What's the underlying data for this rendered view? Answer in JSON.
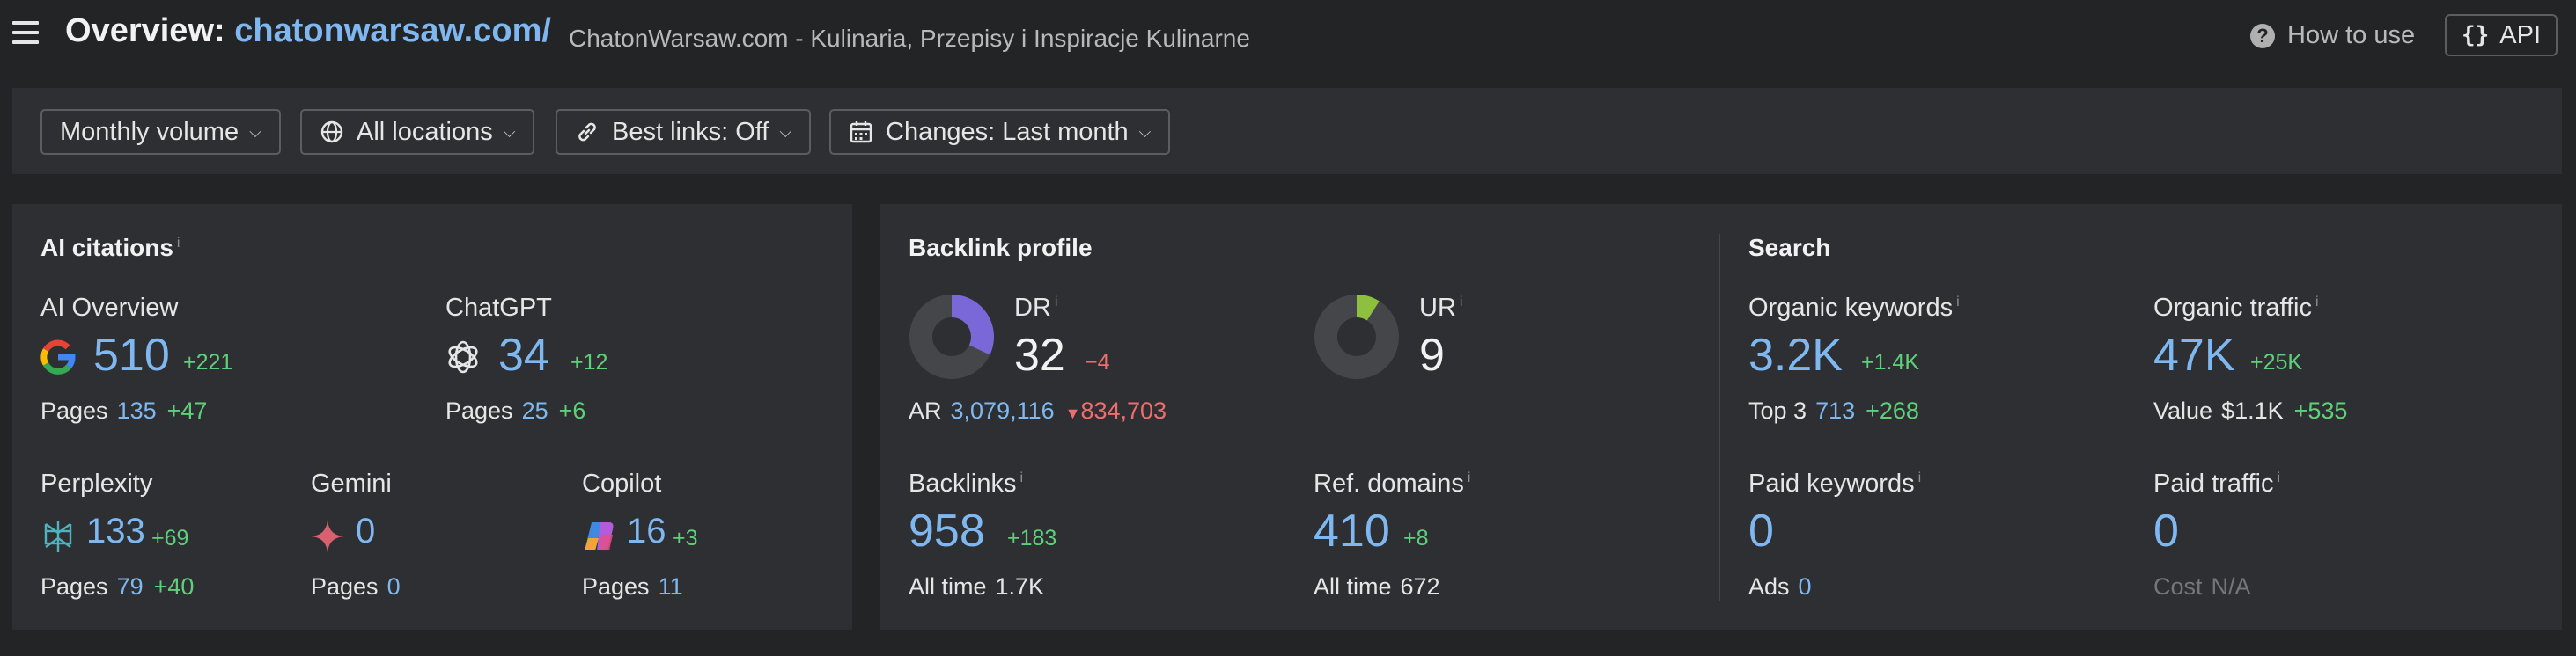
{
  "header": {
    "title_prefix": "Overview:",
    "domain": "chatonwarsaw.com/",
    "subtitle": "ChatonWarsaw.com - Kulinaria, Przepisy i Inspiracje Kulinarne",
    "how_to_use": "How to use",
    "api_brace": "{}",
    "api_label": "API"
  },
  "filters": [
    {
      "label": "Monthly volume",
      "icon": "none"
    },
    {
      "label": "All locations",
      "icon": "globe-icon"
    },
    {
      "label": "Best links: Off",
      "icon": "link-icon"
    },
    {
      "label": "Changes: Last month",
      "icon": "calendar-icon"
    }
  ],
  "ai_citations": {
    "title": "AI citations",
    "info": "i",
    "ai_overview": {
      "label": "AI Overview",
      "value": "510",
      "delta": "+221",
      "pages_label": "Pages",
      "pages": "135",
      "pages_delta": "+47",
      "icon": "google-icon"
    },
    "chatgpt": {
      "label": "ChatGPT",
      "value": "34",
      "delta": "+12",
      "pages_label": "Pages",
      "pages": "25",
      "pages_delta": "+6",
      "icon": "openai-icon"
    },
    "perplexity": {
      "label": "Perplexity",
      "value": "133",
      "delta": "+69",
      "pages_label": "Pages",
      "pages": "79",
      "pages_delta": "+40",
      "icon": "perplexity-icon"
    },
    "gemini": {
      "label": "Gemini",
      "value": "0",
      "pages_label": "Pages",
      "pages": "0",
      "icon": "gemini-icon"
    },
    "copilot": {
      "label": "Copilot",
      "value": "16",
      "delta": "+3",
      "pages_label": "Pages",
      "pages": "11",
      "icon": "copilot-icon"
    }
  },
  "backlink_profile": {
    "title": "Backlink profile",
    "dr": {
      "label": "DR",
      "info": "i",
      "value": "32",
      "delta": "−4",
      "fill_fraction": 0.32,
      "color": "#7b68d8"
    },
    "ar": {
      "label": "AR",
      "value": "3,079,116",
      "delta": "834,703"
    },
    "ur": {
      "label": "UR",
      "info": "i",
      "value": "9",
      "fill_fraction": 0.09,
      "color": "#8fbf3f"
    },
    "backlinks": {
      "label": "Backlinks",
      "info": "i",
      "value": "958",
      "delta": "+183",
      "all_time_label": "All time",
      "all_time": "1.7K"
    },
    "ref_domains": {
      "label": "Ref. domains",
      "info": "i",
      "value": "410",
      "delta": "+8",
      "all_time_label": "All time",
      "all_time": "672"
    }
  },
  "search": {
    "title": "Search",
    "organic_keywords": {
      "label": "Organic keywords",
      "info": "i",
      "value": "3.2K",
      "delta": "+1.4K",
      "sub_label": "Top 3",
      "sub_value": "713",
      "sub_delta": "+268"
    },
    "organic_traffic": {
      "label": "Organic traffic",
      "info": "i",
      "value": "47K",
      "delta": "+25K",
      "sub_label": "Value",
      "sub_value": "$1.1K",
      "sub_delta": "+535"
    },
    "paid_keywords": {
      "label": "Paid keywords",
      "info": "i",
      "value": "0",
      "sub_label": "Ads",
      "sub_value": "0"
    },
    "paid_traffic": {
      "label": "Paid traffic",
      "info": "i",
      "value": "0",
      "sub_label": "Cost",
      "sub_value": "N/A"
    }
  },
  "colors": {
    "accent": "#7fb8f0",
    "positive": "#5fd07a",
    "negative": "#ef6d6d",
    "panel": "#2e2f32",
    "background": "#232426"
  }
}
